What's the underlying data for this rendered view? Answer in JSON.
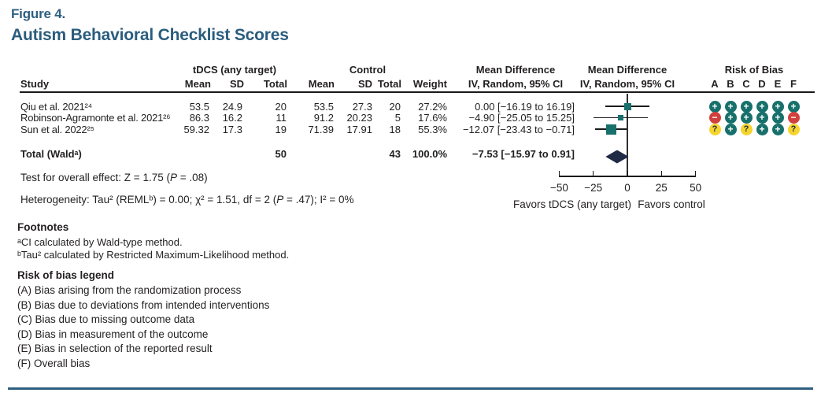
{
  "figure": {
    "label": "Figure 4.",
    "title": "Autism Behavioral Checklist Scores"
  },
  "table": {
    "group_headers": {
      "tdcs": "tDCS (any target)",
      "control": "Control",
      "md_text": "Mean Difference",
      "md_plot": "Mean Difference",
      "rob": "Risk of Bias"
    },
    "columns": {
      "study": "Study",
      "mean1": "Mean",
      "sd1": "SD",
      "total1": "Total",
      "mean2": "Mean",
      "sd2": "SD",
      "total2": "Total",
      "weight": "Weight",
      "iv_text": "IV, Random, 95% CI",
      "iv_plot": "IV, Random, 95% CI"
    },
    "rob_letters": [
      "A",
      "B",
      "C",
      "D",
      "E",
      "F"
    ],
    "rows": [
      {
        "study": "Qiu et al. 2021²⁴",
        "mean1": "53.5",
        "sd1": "24.9",
        "total1": "20",
        "mean2": "53.5",
        "sd2": "27.3",
        "total2": "20",
        "weight": "27.2%",
        "ci": "0.00 [−16.19 to 16.19]"
      },
      {
        "study": "Robinson-Agramonte et al. 2021²⁶",
        "mean1": "86.3",
        "sd1": "16.2",
        "total1": "11",
        "mean2": "91.2",
        "sd2": "20.23",
        "total2": "5",
        "weight": "17.6%",
        "ci": "−4.90 [−25.05 to 15.25]"
      },
      {
        "study": "Sun et al. 2022²⁵",
        "mean1": "59.32",
        "sd1": "17.3",
        "total1": "19",
        "mean2": "71.39",
        "sd2": "17.91",
        "total2": "18",
        "weight": "55.3%",
        "ci": "−12.07 [−23.43 to −0.71]"
      }
    ],
    "total_row": {
      "label": "Total (Waldᵃ)",
      "total1": "50",
      "total2": "43",
      "weight": "100.0%",
      "ci": "−7.53 [−15.97 to 0.91]"
    }
  },
  "stats": {
    "overall_prefix": "Test for overall effect: Z = 1.75 (",
    "p_italic": "P",
    "overall_suffix": " = .08)",
    "het_prefix": "Heterogeneity: Tau² (REMLᵇ) = 0.00; χ² = 1.51, df = 2 (",
    "het_p": "P",
    "het_suffix": " = .47); I² = 0%"
  },
  "plot": {
    "tick_labels": [
      "−50",
      "−25",
      "0",
      "25",
      "50"
    ],
    "favors_left": "Favors tDCS (any target)",
    "favors_right": "Favors control"
  },
  "footnotes": {
    "heading": "Footnotes",
    "items": [
      "ᵃCI calculated by Wald-type method.",
      "ᵇTau² calculated by Restricted Maximum-Likelihood method."
    ]
  },
  "rob_legend": {
    "heading": "Risk of bias legend",
    "items": [
      "(A) Bias arising from the randomization process",
      "(B) Bias due to deviations from intended interventions",
      "(C) Bias due to missing outcome data",
      "(D) Bias in measurement of the outcome",
      "(E) Bias in selection of the reported result",
      "(F) Overall bias"
    ]
  },
  "colors": {
    "accent_blue": "#2e5f80",
    "teal": "#17706b",
    "red": "#d0413e",
    "yellow": "#f6d42e",
    "navy": "#1f2a45",
    "line": "#1a1a1a"
  },
  "chart_data": {
    "type": "forest",
    "title": "Autism Behavioral Checklist Scores",
    "figure_label": "Figure 4.",
    "effect_measure": "Mean Difference IV, Random, 95% CI",
    "axis": {
      "min": -50,
      "max": 50,
      "ticks": [
        -50,
        -25,
        0,
        25,
        50
      ],
      "zero_line": 0,
      "favors_left": "Favors tDCS (any target)",
      "favors_right": "Favors control"
    },
    "studies": [
      {
        "name": "Qiu et al. 2021",
        "ref": 24,
        "tdcs_mean": 53.5,
        "tdcs_sd": 24.9,
        "tdcs_total": 20,
        "ctrl_mean": 53.5,
        "ctrl_sd": 27.3,
        "ctrl_total": 20,
        "weight_pct": 27.2,
        "md": 0.0,
        "ci_low": -16.19,
        "ci_high": 16.19,
        "risk_of_bias": [
          "+",
          "+",
          "+",
          "+",
          "+",
          "+"
        ]
      },
      {
        "name": "Robinson-Agramonte et al. 2021",
        "ref": 26,
        "tdcs_mean": 86.3,
        "tdcs_sd": 16.2,
        "tdcs_total": 11,
        "ctrl_mean": 91.2,
        "ctrl_sd": 20.23,
        "ctrl_total": 5,
        "weight_pct": 17.6,
        "md": -4.9,
        "ci_low": -25.05,
        "ci_high": 15.25,
        "risk_of_bias": [
          "-",
          "+",
          "+",
          "+",
          "+",
          "-"
        ]
      },
      {
        "name": "Sun et al. 2022",
        "ref": 25,
        "tdcs_mean": 59.32,
        "tdcs_sd": 17.3,
        "tdcs_total": 19,
        "ctrl_mean": 71.39,
        "ctrl_sd": 17.91,
        "ctrl_total": 18,
        "weight_pct": 55.3,
        "md": -12.07,
        "ci_low": -23.43,
        "ci_high": -0.71,
        "risk_of_bias": [
          "?",
          "+",
          "?",
          "+",
          "+",
          "?"
        ]
      }
    ],
    "total": {
      "label": "Total (Wald)",
      "tdcs_total": 50,
      "ctrl_total": 43,
      "weight_pct": 100.0,
      "md": -7.53,
      "ci_low": -15.97,
      "ci_high": 0.91
    },
    "overall_effect": "Z = 1.75 (P = .08)",
    "heterogeneity": "Tau² (REML) = 0.00; χ² = 1.51, df = 2 (P = .47); I² = 0%"
  }
}
